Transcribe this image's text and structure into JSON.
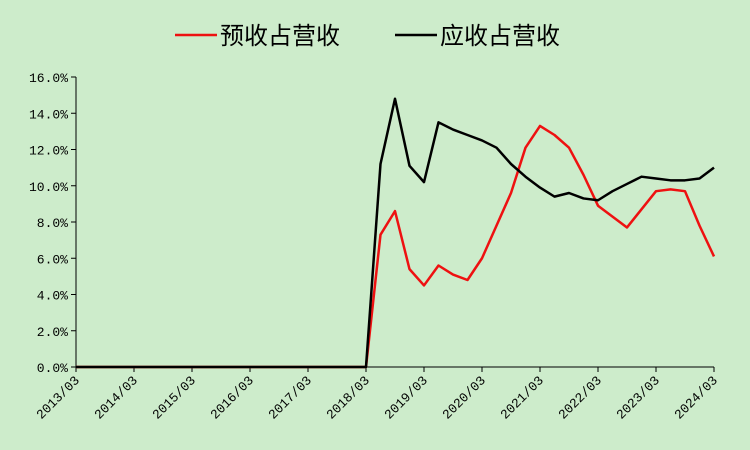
{
  "chart_data": {
    "type": "line",
    "categories": [
      "2013/03",
      null,
      null,
      null,
      "2014/03",
      null,
      null,
      null,
      "2015/03",
      null,
      null,
      null,
      "2016/03",
      null,
      null,
      null,
      "2017/03",
      null,
      null,
      null,
      "2018/03",
      null,
      null,
      null,
      "2019/03",
      null,
      null,
      null,
      "2020/03",
      null,
      null,
      null,
      "2021/03",
      null,
      null,
      null,
      "2022/03",
      null,
      null,
      null,
      "2023/03",
      null,
      null,
      null,
      "2024/03"
    ],
    "series": [
      {
        "name": "预收占营收",
        "color": "#ee1111",
        "values": [
          0,
          0,
          0,
          0,
          0,
          0,
          0,
          0,
          0,
          0,
          0,
          0,
          0,
          0,
          0,
          0,
          0,
          0,
          0,
          0,
          0,
          7.3,
          8.6,
          5.4,
          4.5,
          5.6,
          5.1,
          4.8,
          6.0,
          7.8,
          9.6,
          12.1,
          13.3,
          12.8,
          12.1,
          10.6,
          8.9,
          8.3,
          7.7,
          8.7,
          9.7,
          9.8,
          9.7,
          7.8,
          6.1
        ]
      },
      {
        "name": "应收占营收",
        "color": "#000000",
        "values": [
          0,
          0,
          0,
          0,
          0,
          0,
          0,
          0,
          0,
          0,
          0,
          0,
          0,
          0,
          0,
          0,
          0,
          0,
          0,
          0,
          0,
          11.2,
          14.8,
          11.1,
          10.2,
          13.5,
          13.1,
          12.8,
          12.5,
          12.1,
          11.2,
          10.5,
          9.9,
          9.4,
          9.6,
          9.3,
          9.2,
          9.7,
          10.1,
          10.5,
          10.4,
          10.3,
          10.3,
          10.4,
          11.0
        ]
      }
    ],
    "ylim": [
      0,
      16
    ],
    "yticks": [
      {
        "value": 0,
        "label": "0.0%"
      },
      {
        "value": 2,
        "label": "2.0%"
      },
      {
        "value": 4,
        "label": "4.0%"
      },
      {
        "value": 6,
        "label": "6.0%"
      },
      {
        "value": 8,
        "label": "8.0%"
      },
      {
        "value": 10,
        "label": "10.0%"
      },
      {
        "value": 12,
        "label": "12.0%"
      },
      {
        "value": 14,
        "label": "14.0%"
      },
      {
        "value": 16,
        "label": "16.0%"
      }
    ],
    "grid": false,
    "legend": "top"
  }
}
